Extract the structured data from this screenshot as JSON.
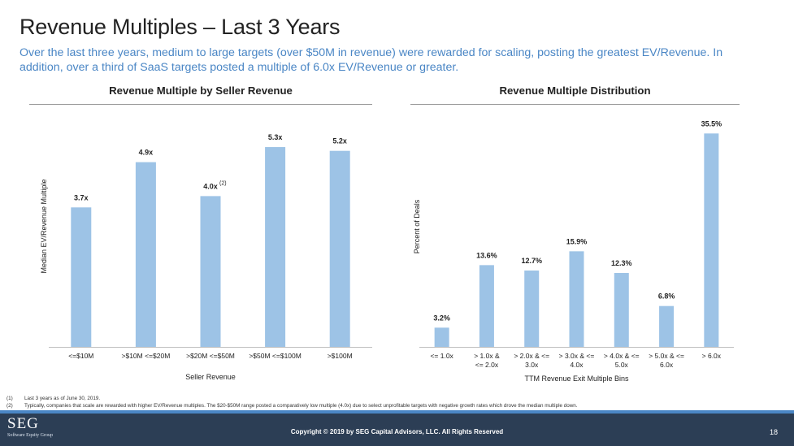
{
  "page": {
    "title": "Revenue Multiples – Last 3 Years",
    "subtitle": "Over the last three years, medium to large targets (over $50M in revenue) were rewarded for scaling, posting the greatest EV/Revenue. In addition, over a third of SaaS targets posted a multiple of 6.0x EV/Revenue or greater."
  },
  "colors": {
    "bar": "#9dc3e6",
    "accent": "#4a86c5",
    "footer": "#2c3e55"
  },
  "chart_data": [
    {
      "type": "bar",
      "title": "Revenue Multiple by Seller Revenue",
      "xlabel": "Seller Revenue",
      "ylabel": "Median EV/Revenue Multiple",
      "categories": [
        "<=$10M",
        ">$10M <=$20M",
        ">$20M <=$50M",
        ">$50M <=$100M",
        ">$100M"
      ],
      "values": [
        3.7,
        4.9,
        4.0,
        5.3,
        5.2
      ],
      "labels": [
        "3.7x",
        "4.9x",
        "4.0x",
        "5.3x",
        "5.2x"
      ],
      "superscripts": [
        "",
        "",
        "(2)",
        "",
        ""
      ],
      "ylim": [
        0,
        6.4
      ],
      "grid": false
    },
    {
      "type": "bar",
      "title": "Revenue Multiple Distribution",
      "xlabel": "TTM Revenue Exit Multiple Bins",
      "ylabel": "Percent of Deals",
      "categories": [
        [
          "<= 1.0x"
        ],
        [
          "> 1.0x   &",
          "<= 2.0x"
        ],
        [
          "> 2.0x & <=",
          "3.0x"
        ],
        [
          "> 3.0x & <=",
          "4.0x"
        ],
        [
          "> 4.0x & <=",
          "5.0x"
        ],
        [
          "> 5.0x & <=",
          "6.0x"
        ],
        [
          "> 6.0x"
        ]
      ],
      "values": [
        3.2,
        13.6,
        12.7,
        15.9,
        12.3,
        6.8,
        35.5
      ],
      "labels": [
        "3.2%",
        "13.6%",
        "12.7%",
        "15.9%",
        "12.3%",
        "6.8%",
        "35.5%"
      ],
      "ylim": [
        0,
        40
      ],
      "grid": false
    }
  ],
  "footnotes": [
    {
      "num": "(1)",
      "text": "Last 3 years as of June 30, 2019."
    },
    {
      "num": "(2)",
      "text": "Typically, companies that scale are rewarded with higher EV/Revenue multiples. The $20-$50M range posted a comparatively low multiple (4.0x) due to select unprofitable targets with negative growth rates which drove the median multiple down."
    }
  ],
  "footer": {
    "logo_main": "SEG",
    "logo_sub": "Software Equity Group",
    "copyright": "Copyright © 2019 by SEG Capital Advisors, LLC. All Rights Reserved",
    "page_number": "18"
  }
}
